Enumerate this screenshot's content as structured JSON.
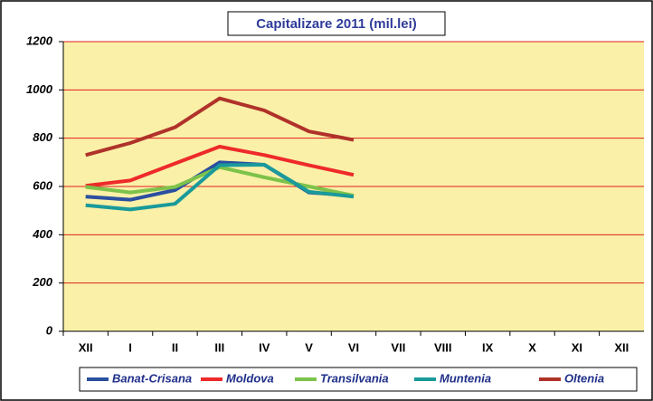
{
  "chart_data": {
    "type": "line",
    "title": "Capitalizare 2011 (mil.lei)",
    "categories": [
      "XII",
      "I",
      "II",
      "III",
      "IV",
      "V",
      "VI",
      "VII",
      "VIII",
      "IX",
      "X",
      "XI",
      "XII"
    ],
    "series": [
      {
        "name": "Banat-Crisana",
        "color": "#2b4fa0",
        "values": [
          558,
          545,
          585,
          700,
          690,
          575,
          562,
          null,
          null,
          null,
          null,
          null,
          null
        ]
      },
      {
        "name": "Moldova",
        "color": "#ee2a2a",
        "values": [
          603,
          625,
          695,
          765,
          730,
          688,
          648,
          null,
          null,
          null,
          null,
          null,
          null
        ]
      },
      {
        "name": "Transilvania",
        "color": "#7dc24a",
        "values": [
          598,
          575,
          598,
          680,
          638,
          600,
          562,
          null,
          null,
          null,
          null,
          null,
          null
        ]
      },
      {
        "name": "Muntenia",
        "color": "#1a9a9a",
        "values": [
          522,
          505,
          528,
          688,
          690,
          578,
          558,
          null,
          null,
          null,
          null,
          null,
          null
        ]
      },
      {
        "name": "Oltenia",
        "color": "#b0322a",
        "values": [
          730,
          780,
          845,
          965,
          915,
          828,
          793,
          null,
          null,
          null,
          null,
          null,
          null
        ]
      }
    ],
    "ylim": [
      0,
      1200
    ],
    "yticks": [
      0,
      200,
      400,
      600,
      800,
      1000,
      1200
    ],
    "grid": true,
    "legend": "bottom"
  }
}
